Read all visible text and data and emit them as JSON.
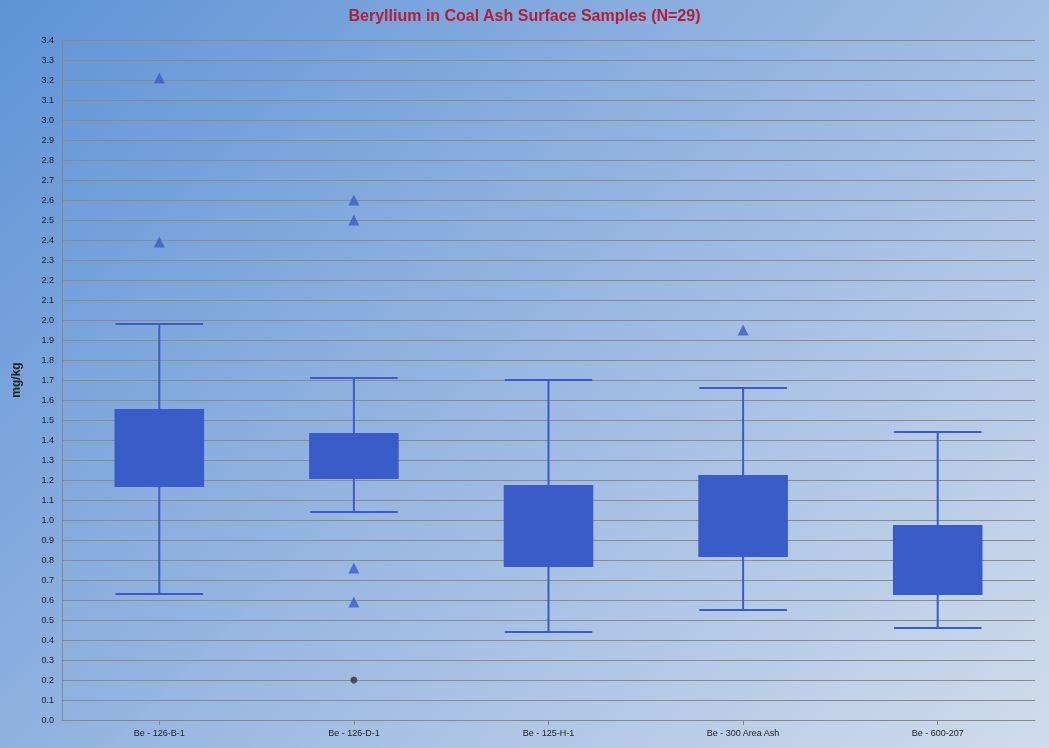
{
  "chart_data": {
    "type": "box",
    "title": "Beryllium in Coal Ash Surface Samples (N=29)",
    "ylabel": "mg/kg",
    "categories": [
      "Be - 126-B-1",
      "Be - 126-D-1",
      "Be - 125-H-1",
      "Be - 300 Area Ash",
      "Be - 600-207"
    ],
    "color": "#3a5cc8",
    "boxes": [
      {
        "low": 0.63,
        "q1": 1.17,
        "median": 1.32,
        "q3": 1.55,
        "high": 1.98,
        "outliers": [
          3.21,
          2.39
        ]
      },
      {
        "low": 1.04,
        "q1": 1.21,
        "median": 1.31,
        "q3": 1.43,
        "high": 1.71,
        "outliers": [
          2.6,
          2.5,
          0.76,
          0.59
        ]
      },
      {
        "low": 0.44,
        "q1": 0.77,
        "median": 0.95,
        "q3": 1.17,
        "high": 1.7
      },
      {
        "low": 0.55,
        "q1": 0.82,
        "median": 0.96,
        "q3": 1.22,
        "high": 1.66,
        "outliers": [
          1.95
        ]
      },
      {
        "low": 0.46,
        "q1": 0.63,
        "median": 0.78,
        "q3": 0.97,
        "high": 1.44
      }
    ],
    "series": [
      {
        "type": "scatter",
        "x": [
          "Be - 126-D-1"
        ],
        "values": [
          0.2
        ],
        "marker": "circle",
        "color": "#333333"
      }
    ],
    "marker": "triangle",
    "grid": "y",
    "ylim": [
      0,
      3.4
    ],
    "yticks": [
      {
        "value": 0,
        "label": "0.0"
      },
      0.1,
      0.2,
      0.3,
      0.4,
      0.5,
      0.6,
      0.7,
      0.8,
      0.9,
      {
        "value": 1,
        "label": "1.0"
      },
      1.1,
      1.2,
      1.3,
      1.4,
      1.5,
      1.6,
      1.7,
      1.8,
      1.9,
      {
        "value": 2,
        "label": "2.0"
      },
      2.1,
      2.2,
      2.3,
      2.4,
      2.5,
      2.6,
      2.7,
      2.8,
      2.9,
      {
        "value": 3,
        "label": "3.0"
      },
      3.1,
      3.2,
      3.3,
      3.4
    ]
  }
}
